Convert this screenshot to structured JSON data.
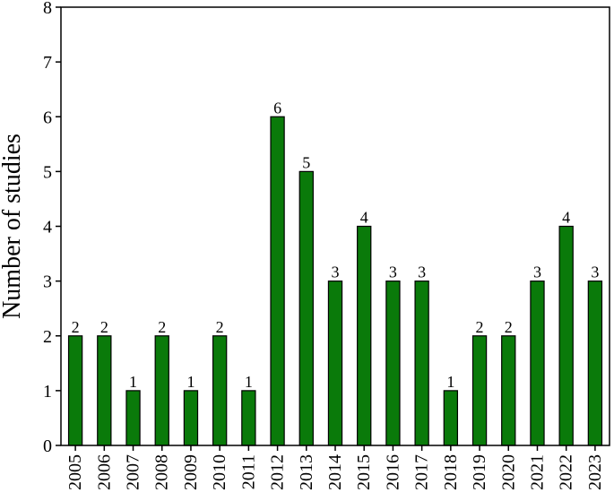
{
  "chart_data": {
    "type": "bar",
    "title": "",
    "xlabel": "",
    "ylabel": "Number of studies",
    "ylim": [
      0,
      8
    ],
    "yticks": [
      0,
      1,
      2,
      3,
      4,
      5,
      6,
      7,
      8
    ],
    "categories": [
      "2005",
      "2006",
      "2007",
      "2008",
      "2009",
      "2010",
      "2011",
      "2012",
      "2013",
      "2014",
      "2015",
      "2016",
      "2017",
      "2018",
      "2019",
      "2020",
      "2021",
      "2022",
      "2023"
    ],
    "values": [
      2,
      2,
      1,
      2,
      1,
      2,
      1,
      6,
      5,
      3,
      4,
      3,
      3,
      1,
      2,
      2,
      3,
      4,
      3
    ],
    "bar_color": "#0a7a0a",
    "bar_edge_color": "#000000",
    "grid": false,
    "legend": "none"
  }
}
